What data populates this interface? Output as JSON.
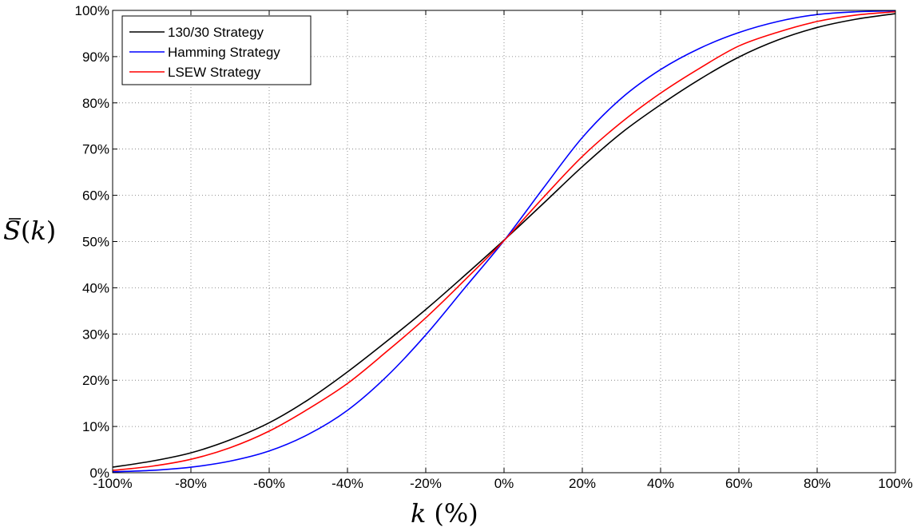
{
  "chart_data": {
    "type": "line",
    "title": "",
    "xlabel": "k (%)",
    "ylabel": "S̄(k)",
    "xlim": [
      -100,
      100
    ],
    "ylim": [
      0,
      100
    ],
    "xticks": [
      -100,
      -80,
      -60,
      -40,
      -20,
      0,
      20,
      40,
      60,
      80,
      100
    ],
    "yticks": [
      0,
      10,
      20,
      30,
      40,
      50,
      60,
      70,
      80,
      90,
      100
    ],
    "xtick_labels": [
      "-100%",
      "-80%",
      "-60%",
      "-40%",
      "-20%",
      "0%",
      "20%",
      "40%",
      "60%",
      "80%",
      "100%"
    ],
    "ytick_labels": [
      "0%",
      "10%",
      "20%",
      "30%",
      "40%",
      "50%",
      "60%",
      "70%",
      "80%",
      "90%",
      "100%"
    ],
    "grid": true,
    "legend_position": "top-left",
    "x": [
      -100,
      -90,
      -80,
      -70,
      -60,
      -50,
      -40,
      -30,
      -20,
      -10,
      0,
      10,
      20,
      30,
      40,
      50,
      60,
      70,
      80,
      90,
      100
    ],
    "series": [
      {
        "name": "130/30 Strategy",
        "color": "#000000",
        "values": [
          1.2,
          2.5,
          4.3,
          7.1,
          10.8,
          15.8,
          21.8,
          28.4,
          35.3,
          42.7,
          50.3,
          58.2,
          66.2,
          73.5,
          79.6,
          85.1,
          89.9,
          93.6,
          96.3,
          98.1,
          99.3
        ]
      },
      {
        "name": "Hamming Strategy",
        "color": "#0000ff",
        "values": [
          0.2,
          0.5,
          1.2,
          2.5,
          4.7,
          8.3,
          13.5,
          20.8,
          29.8,
          40.0,
          50.2,
          61.5,
          72.5,
          81.0,
          87.2,
          91.8,
          95.2,
          97.6,
          99.1,
          99.7,
          99.9
        ]
      },
      {
        "name": "LSEW Strategy",
        "color": "#ff0000",
        "values": [
          0.5,
          1.4,
          2.9,
          5.4,
          9.0,
          13.8,
          19.3,
          26.2,
          33.5,
          41.7,
          50.2,
          59.5,
          68.4,
          75.8,
          82.1,
          87.5,
          92.3,
          95.3,
          97.6,
          99.0,
          99.7
        ]
      }
    ]
  }
}
